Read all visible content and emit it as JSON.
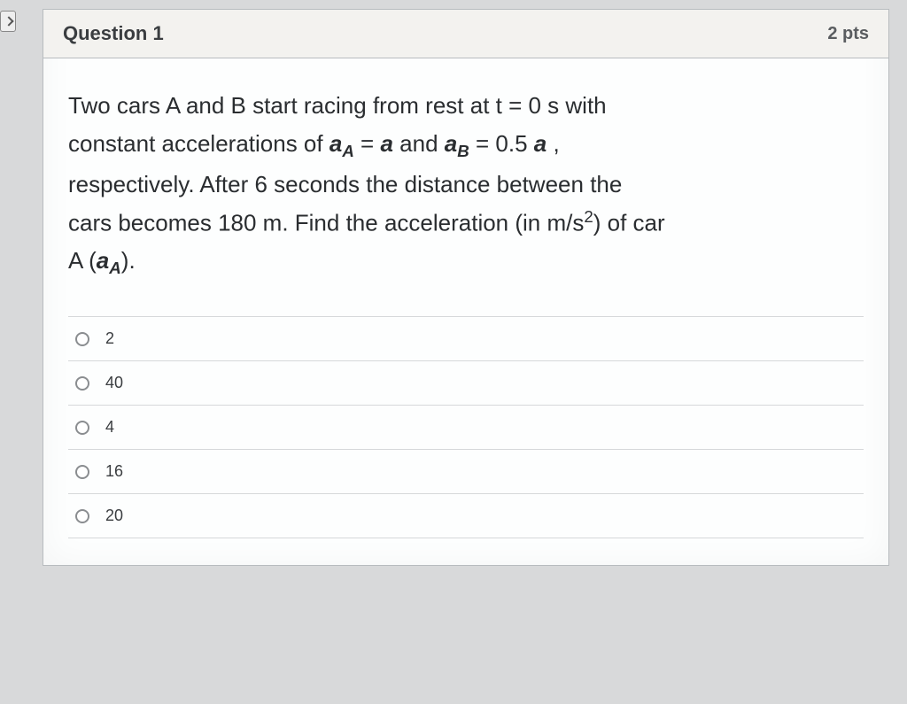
{
  "header": {
    "title": "Question 1",
    "points": "2 pts"
  },
  "question": {
    "line1_prefix": "Two cars A and B start racing from rest at t = 0 s with",
    "line2_prefix": "constant accelerations of ",
    "aA_sym": "a",
    "aA_sub": "A",
    "eq_a": " = ",
    "a_sym": "a",
    "and_text": " and ",
    "aB_sym": "a",
    "aB_sub": "B",
    "eq_b": " = 0.5 ",
    "b_sym": "a",
    "comma": " ,",
    "line3": "respectively. After 6 seconds the distance between the",
    "line4_prefix": "cars becomes 180 m. Find the acceleration (in m/s",
    "sup2": "2",
    "line4_suffix": ") of car",
    "line5_prefix": "A (",
    "line5_aA_sym": "a",
    "line5_aA_sub": "A",
    "line5_suffix": ")."
  },
  "options": [
    {
      "label": "2"
    },
    {
      "label": "40"
    },
    {
      "label": "4"
    },
    {
      "label": "16"
    },
    {
      "label": "20"
    }
  ],
  "style": {
    "body_bg": "#d8d9da",
    "container_bg": "#fdfefe",
    "header_bg": "#f3f2ef",
    "border_color": "#b8bcbf",
    "divider_color": "#d6d8da",
    "text_color": "#2a2d30"
  }
}
